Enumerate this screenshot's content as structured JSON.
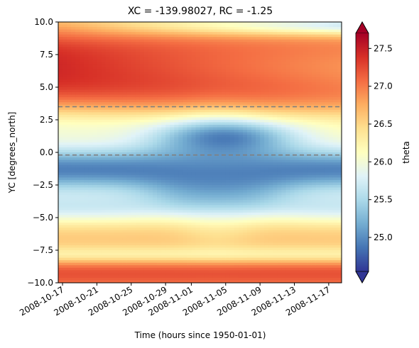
{
  "chart_data": {
    "type": "heatmap",
    "title": "XC = -139.98027, RC = -1.25",
    "xlabel": "Time (hours since 1950-01-01)",
    "ylabel": "YC [degrees_north]",
    "colorbar_label": "theta",
    "colormap": "RdYlBu_r",
    "xlim": [
      "2008-10-16T12:00",
      "2008-11-18T12:00"
    ],
    "ylim": [
      -10.0,
      10.0
    ],
    "clim": [
      24.55,
      27.7
    ],
    "x_tick_labels": [
      "2008-10-17",
      "2008-10-21",
      "2008-10-25",
      "2008-10-29",
      "2008-11-01",
      "2008-11-05",
      "2008-11-09",
      "2008-11-13",
      "2008-11-17"
    ],
    "x_tick_dates": [
      "2008-10-17",
      "2008-10-21",
      "2008-10-25",
      "2008-10-29",
      "2008-11-01",
      "2008-11-05",
      "2008-11-09",
      "2008-11-13",
      "2008-11-17"
    ],
    "y_ticks": [
      10.0,
      7.5,
      5.0,
      2.5,
      0.0,
      -2.5,
      -5.0,
      -7.5,
      -10.0
    ],
    "y_tick_labels": [
      "10.0",
      "7.5",
      "5.0",
      "2.5",
      "0.0",
      "−2.5",
      "−5.0",
      "−7.5",
      "−10.0"
    ],
    "colorbar_ticks": [
      25.0,
      25.5,
      26.0,
      26.5,
      27.0,
      27.5
    ],
    "colorbar_tick_labels": [
      "25.0",
      "25.5",
      "26.0",
      "26.5",
      "27.0",
      "27.5"
    ],
    "hlines": [
      {
        "y": 3.5,
        "style": "dashed",
        "color": "#808080"
      },
      {
        "y": -0.2,
        "style": "dashed",
        "color": "#808080"
      }
    ],
    "grid": false,
    "extend": "both"
  }
}
